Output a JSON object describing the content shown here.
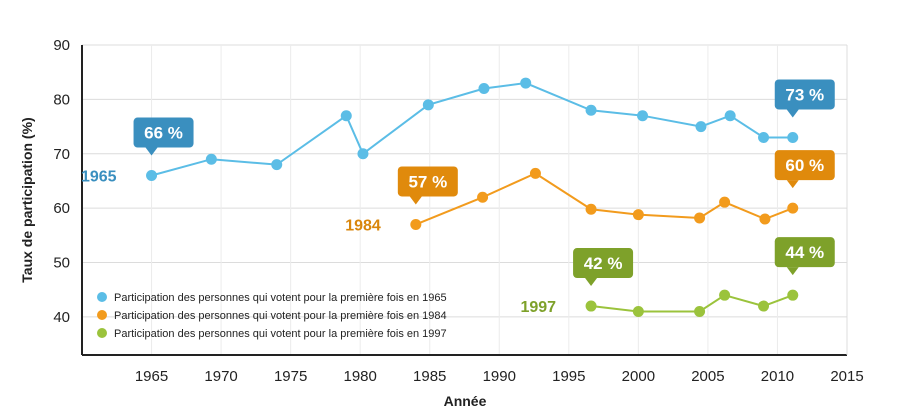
{
  "chart_data": {
    "type": "line",
    "xlabel": "Année",
    "ylabel": "Taux de participation (%)",
    "xlim": [
      1960,
      2015
    ],
    "ylim": [
      33,
      90
    ],
    "x_ticks": [
      1965,
      1970,
      1975,
      1980,
      1985,
      1990,
      1995,
      2000,
      2005,
      2010,
      2015
    ],
    "y_ticks": [
      40,
      50,
      60,
      70,
      80,
      90
    ],
    "grid": "horizontal",
    "legend_position": "bottom-left",
    "series": [
      {
        "name": "Participation des personnes qui votent pour la première fois en 1965",
        "color": "#5bbde6",
        "start_label": "1965",
        "start_label_color": "#3a8fbf",
        "x": [
          1965,
          1969.3,
          1974,
          1979,
          1980.2,
          1984.9,
          1988.9,
          1991.9,
          1996.6,
          2000.3,
          2004.5,
          2006.6,
          2009,
          2011.1
        ],
        "y": [
          66,
          69,
          68,
          77,
          70,
          79,
          82,
          83,
          78,
          77,
          75,
          77,
          73,
          73
        ],
        "callouts": [
          {
            "text": "66 %",
            "x": 1965,
            "y": 66,
            "color": "#3a8fbf"
          },
          {
            "text": "73 %",
            "x": 2011.1,
            "y": 73,
            "color": "#3a8fbf"
          }
        ]
      },
      {
        "name": "Participation des personnes qui votent pour la première fois en 1984",
        "color": "#f29b1d",
        "start_label": "1984",
        "start_label_color": "#d9860b",
        "x": [
          1984,
          1988.8,
          1992.6,
          1996.6,
          2000,
          2004.4,
          2006.2,
          2009.1,
          2011.1
        ],
        "y": [
          57,
          62,
          66.4,
          59.8,
          58.8,
          58.2,
          61.1,
          58,
          60
        ],
        "callouts": [
          {
            "text": "57 %",
            "x": 1984,
            "y": 57,
            "color": "#e08a0c"
          },
          {
            "text": "60 %",
            "x": 2011.1,
            "y": 60,
            "color": "#e08a0c"
          }
        ]
      },
      {
        "name": "Participation des personnes qui votent pour la première fois en 1997",
        "color": "#9bc33c",
        "start_label": "1997",
        "start_label_color": "#7ea12a",
        "x": [
          1996.6,
          2000,
          2004.4,
          2006.2,
          2009,
          2011.1
        ],
        "y": [
          42,
          41,
          41,
          44,
          42,
          44
        ],
        "callouts": [
          {
            "text": "42 %",
            "x": 1996.6,
            "y": 42,
            "color": "#7ea12a"
          },
          {
            "text": "44 %",
            "x": 2011.1,
            "y": 44,
            "color": "#7ea12a"
          }
        ]
      }
    ]
  }
}
